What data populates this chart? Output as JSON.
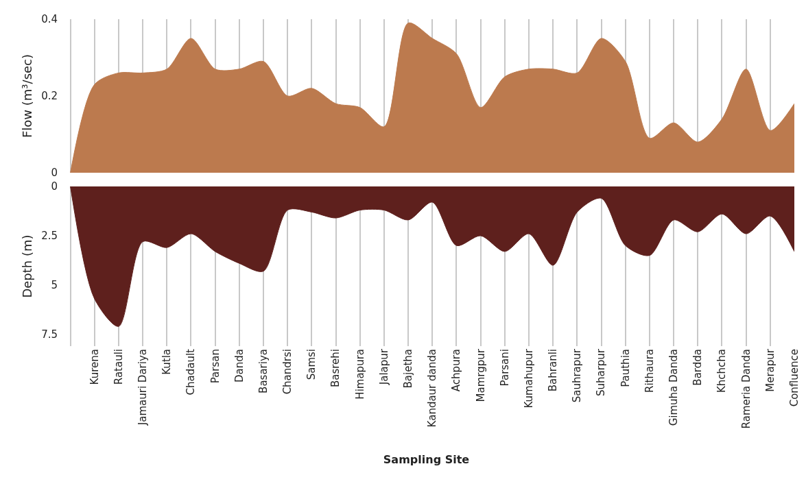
{
  "chart_data": [
    {
      "type": "area",
      "ylabel": "Flow (m³/sec)",
      "categories": [
        null,
        null,
        null,
        null,
        null,
        null,
        null,
        null,
        null,
        null,
        null,
        null,
        null,
        null,
        null,
        null,
        null,
        null,
        null,
        null,
        null,
        null,
        null,
        null,
        null,
        null,
        null,
        null,
        null,
        null,
        null
      ],
      "series": [
        {
          "color": "#bc7a4e",
          "values": [
            0,
            0.23,
            0.26,
            0.26,
            0.27,
            0.35,
            0.27,
            0.27,
            0.29,
            0.2,
            0.22,
            0.18,
            0.17,
            0.12,
            0.39,
            0.35,
            0.31,
            0.17,
            0.25,
            0.27,
            0.27,
            0.26,
            0.35,
            0.29,
            0.09,
            0.13,
            0.08,
            0.14,
            0.27,
            0.11,
            0.18
          ]
        }
      ],
      "ylim": [
        0,
        0.4
      ],
      "yticks": [
        0,
        0.2,
        0.4
      ],
      "grid": "x",
      "tick_labels": "y"
    },
    {
      "type": "area",
      "ylabel": "Depth (m)",
      "xlabel": "Sampling Site",
      "categories": [
        null,
        "Kurena",
        "Ratauli",
        "Jamauri Dariya",
        "Kutla",
        "Chadault",
        "Parsan",
        "Danda",
        "Basariya",
        "Chandrsi",
        "Samsi",
        "Basrehi",
        "Himapura",
        "Jalapur",
        "Bajetha",
        "Kandaur danda",
        "Achpura",
        "Mamrgpur",
        "Parsani",
        "Kumahupur",
        "Bahranli",
        "Sauhrapur",
        "Suharpur",
        "Pauthia",
        "Rithaura",
        "Gimuha Danda",
        "Bardda",
        "Khchcha",
        "Rameria Danda",
        "Merapur",
        "Confluence"
      ],
      "series": [
        {
          "color": "#5e201d",
          "values": [
            0,
            5.7,
            7.1,
            2.8,
            3.1,
            2.4,
            3.3,
            3.9,
            4.3,
            1.2,
            1.3,
            1.6,
            1.2,
            1.2,
            1.7,
            0.8,
            3.0,
            2.5,
            3.3,
            2.4,
            4.0,
            1.3,
            0.6,
            3.0,
            3.5,
            1.7,
            2.3,
            1.4,
            2.4,
            1.5,
            3.3
          ]
        }
      ],
      "ylim": [
        8.1,
        0
      ],
      "yticks": [
        0,
        2.5,
        5,
        7.5
      ],
      "grid": "x"
    }
  ]
}
